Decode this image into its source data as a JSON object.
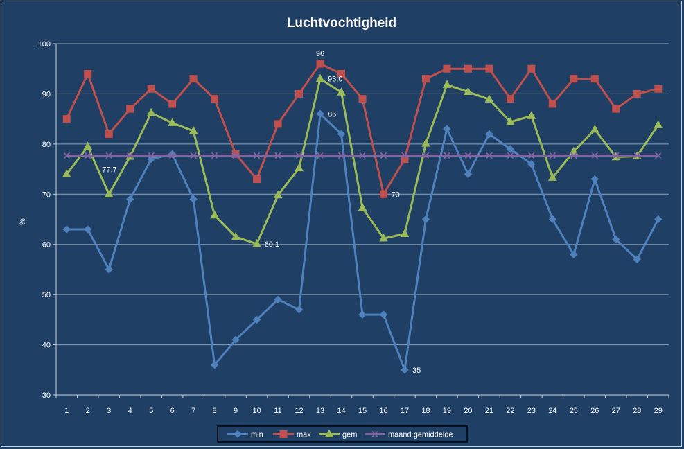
{
  "chart_data": {
    "type": "line",
    "title": "Luchtvochtigheid",
    "xlabel": "",
    "ylabel": "%",
    "ylim": [
      30,
      100
    ],
    "y_ticks": [
      30,
      40,
      50,
      60,
      70,
      80,
      90,
      100
    ],
    "categories": [
      "1",
      "2",
      "3",
      "4",
      "5",
      "6",
      "7",
      "8",
      "9",
      "10",
      "11",
      "12",
      "13",
      "14",
      "15",
      "16",
      "17",
      "18",
      "19",
      "20",
      "21",
      "22",
      "23",
      "24",
      "25",
      "26",
      "27",
      "28",
      "29"
    ],
    "grid": true,
    "legend_position": "bottom",
    "series": [
      {
        "name": "min",
        "color": "#4f81bd",
        "marker": "diamond",
        "values": [
          63,
          63,
          55,
          69,
          77,
          78,
          69,
          36,
          41,
          45,
          49,
          47,
          86,
          82,
          46,
          46,
          35,
          65,
          83,
          74,
          82,
          79,
          76,
          65,
          58,
          73,
          61,
          57,
          65
        ]
      },
      {
        "name": "max",
        "color": "#c0504d",
        "marker": "square",
        "values": [
          85,
          94,
          82,
          87,
          91,
          88,
          93,
          89,
          78,
          73,
          84,
          90,
          96,
          94,
          89,
          70,
          77,
          93,
          95,
          95,
          95,
          89,
          95,
          88,
          93,
          93,
          87,
          90,
          91
        ]
      },
      {
        "name": "gem",
        "color": "#9bbb59",
        "marker": "triangle",
        "values": [
          74,
          79.5,
          70,
          77.5,
          86.2,
          84.2,
          82.6,
          65.8,
          61.5,
          60.1,
          69.8,
          75.2,
          93.0,
          90.3,
          67.3,
          61.2,
          62.1,
          80.1,
          91.8,
          90.4,
          88.9,
          84.4,
          85.6,
          73.3,
          78.5,
          82.9,
          77.4,
          77.6,
          83.8
        ]
      },
      {
        "name": "maand gemiddelde",
        "color": "#8064a2",
        "marker": "x",
        "values": [
          77.7,
          77.7,
          77.7,
          77.7,
          77.7,
          77.7,
          77.7,
          77.7,
          77.7,
          77.7,
          77.7,
          77.7,
          77.7,
          77.7,
          77.7,
          77.7,
          77.7,
          77.7,
          77.7,
          77.7,
          77.7,
          77.7,
          77.7,
          77.7,
          77.7,
          77.7,
          77.7,
          77.7,
          77.7
        ]
      }
    ],
    "annotations": [
      {
        "series": 3,
        "index": 2,
        "text": "77,7",
        "pos": "below-right"
      },
      {
        "series": 2,
        "index": 9,
        "text": "60,1",
        "pos": "right"
      },
      {
        "series": 1,
        "index": 12,
        "text": "96",
        "pos": "above"
      },
      {
        "series": 2,
        "index": 12,
        "text": "93,0",
        "pos": "right"
      },
      {
        "series": 0,
        "index": 12,
        "text": "86",
        "pos": "right"
      },
      {
        "series": 1,
        "index": 15,
        "text": "70",
        "pos": "right"
      },
      {
        "series": 0,
        "index": 16,
        "text": "35",
        "pos": "right"
      }
    ]
  }
}
